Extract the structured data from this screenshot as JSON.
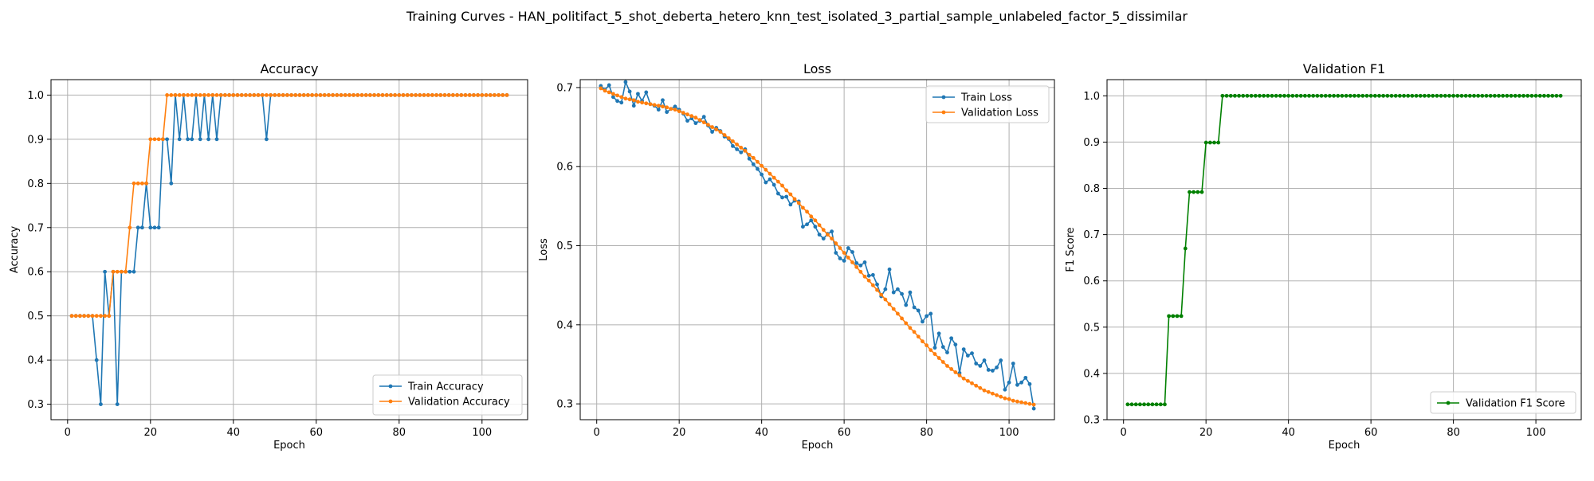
{
  "figure": {
    "suptitle": "Training Curves - HAN_politifact_5_shot_deberta_hetero_knn_test_isolated_3_partial_sample_unlabeled_factor_5_dissimilar"
  },
  "colors": {
    "blue": "#1f77b4",
    "orange": "#ff7f0e",
    "green": "#008000",
    "grid": "#b0b0b0"
  },
  "chart_data": [
    {
      "type": "line",
      "title": "Accuracy",
      "xlabel": "Epoch",
      "ylabel": "Accuracy",
      "xlim": [
        -4,
        111
      ],
      "ylim": [
        0.265,
        1.035
      ],
      "xticks": [
        0,
        20,
        40,
        60,
        80,
        100
      ],
      "yticks": [
        0.3,
        0.4,
        0.5,
        0.6,
        0.7,
        0.8,
        0.9,
        1.0
      ],
      "ytick_labels": [
        "0.3",
        "0.4",
        "0.5",
        "0.6",
        "0.7",
        "0.8",
        "0.9",
        "1.0"
      ],
      "grid": true,
      "legend_position": "lower-right",
      "series": [
        {
          "name": "Train Accuracy",
          "color": "#1f77b4",
          "x_start": 1,
          "values": [
            0.5,
            0.5,
            0.5,
            0.5,
            0.5,
            0.5,
            0.4,
            0.3,
            0.6,
            0.5,
            0.6,
            0.3,
            0.6,
            0.6,
            0.6,
            0.6,
            0.7,
            0.7,
            0.8,
            0.7,
            0.7,
            0.7,
            0.9,
            0.9,
            0.8,
            1.0,
            0.9,
            1.0,
            0.9,
            0.9,
            1.0,
            0.9,
            1.0,
            0.9,
            1.0,
            0.9,
            1.0,
            1.0,
            1.0,
            1.0,
            1.0,
            1.0,
            1.0,
            1.0,
            1.0,
            1.0,
            1.0,
            0.9,
            1.0,
            1.0,
            1.0,
            1.0,
            1.0,
            1.0,
            1.0,
            1.0,
            1.0,
            1.0,
            1.0,
            1.0,
            1.0,
            1.0,
            1.0,
            1.0,
            1.0,
            1.0,
            1.0,
            1.0,
            1.0,
            1.0,
            1.0,
            1.0,
            1.0,
            1.0,
            1.0,
            1.0,
            1.0,
            1.0,
            1.0,
            1.0,
            1.0,
            1.0,
            1.0,
            1.0,
            1.0,
            1.0,
            1.0,
            1.0,
            1.0,
            1.0,
            1.0,
            1.0,
            1.0,
            1.0,
            1.0,
            1.0,
            1.0,
            1.0,
            1.0,
            1.0,
            1.0,
            1.0,
            1.0,
            1.0,
            1.0,
            1.0
          ]
        },
        {
          "name": "Validation Accuracy",
          "color": "#ff7f0e",
          "x_start": 1,
          "values": [
            0.5,
            0.5,
            0.5,
            0.5,
            0.5,
            0.5,
            0.5,
            0.5,
            0.5,
            0.5,
            0.6,
            0.6,
            0.6,
            0.6,
            0.7,
            0.8,
            0.8,
            0.8,
            0.8,
            0.9,
            0.9,
            0.9,
            0.9,
            1.0,
            1.0,
            1.0,
            1.0,
            1.0,
            1.0,
            1.0,
            1.0,
            1.0,
            1.0,
            1.0,
            1.0,
            1.0,
            1.0,
            1.0,
            1.0,
            1.0,
            1.0,
            1.0,
            1.0,
            1.0,
            1.0,
            1.0,
            1.0,
            1.0,
            1.0,
            1.0,
            1.0,
            1.0,
            1.0,
            1.0,
            1.0,
            1.0,
            1.0,
            1.0,
            1.0,
            1.0,
            1.0,
            1.0,
            1.0,
            1.0,
            1.0,
            1.0,
            1.0,
            1.0,
            1.0,
            1.0,
            1.0,
            1.0,
            1.0,
            1.0,
            1.0,
            1.0,
            1.0,
            1.0,
            1.0,
            1.0,
            1.0,
            1.0,
            1.0,
            1.0,
            1.0,
            1.0,
            1.0,
            1.0,
            1.0,
            1.0,
            1.0,
            1.0,
            1.0,
            1.0,
            1.0,
            1.0,
            1.0,
            1.0,
            1.0,
            1.0,
            1.0,
            1.0,
            1.0,
            1.0,
            1.0,
            1.0
          ]
        }
      ]
    },
    {
      "type": "line",
      "title": "Loss",
      "xlabel": "Epoch",
      "ylabel": "Loss",
      "xlim": [
        -4,
        111
      ],
      "ylim": [
        0.28,
        0.71
      ],
      "xticks": [
        0,
        20,
        40,
        60,
        80,
        100
      ],
      "yticks": [
        0.3,
        0.4,
        0.5,
        0.6,
        0.7
      ],
      "ytick_labels": [
        "0.3",
        "0.4",
        "0.5",
        "0.6",
        "0.7"
      ],
      "grid": true,
      "legend_position": "upper-right",
      "series": [
        {
          "name": "Train Loss",
          "color": "#1f77b4",
          "x_start": 1,
          "values": [
            0.702,
            0.697,
            0.703,
            0.688,
            0.683,
            0.681,
            0.707,
            0.695,
            0.677,
            0.692,
            0.683,
            0.694,
            0.679,
            0.677,
            0.672,
            0.684,
            0.669,
            0.673,
            0.676,
            0.672,
            0.667,
            0.658,
            0.661,
            0.655,
            0.658,
            0.663,
            0.652,
            0.644,
            0.649,
            0.645,
            0.638,
            0.635,
            0.626,
            0.622,
            0.618,
            0.622,
            0.61,
            0.603,
            0.597,
            0.59,
            0.58,
            0.584,
            0.577,
            0.566,
            0.561,
            0.562,
            0.552,
            0.557,
            0.556,
            0.524,
            0.527,
            0.532,
            0.524,
            0.514,
            0.509,
            0.515,
            0.518,
            0.491,
            0.484,
            0.481,
            0.497,
            0.492,
            0.478,
            0.475,
            0.479,
            0.462,
            0.463,
            0.451,
            0.436,
            0.445,
            0.47,
            0.441,
            0.445,
            0.439,
            0.425,
            0.441,
            0.422,
            0.418,
            0.404,
            0.411,
            0.414,
            0.371,
            0.389,
            0.372,
            0.365,
            0.383,
            0.375,
            0.339,
            0.369,
            0.361,
            0.364,
            0.351,
            0.348,
            0.355,
            0.343,
            0.342,
            0.346,
            0.355,
            0.318,
            0.327,
            0.351,
            0.324,
            0.327,
            0.333,
            0.325,
            0.294
          ]
        },
        {
          "name": "Validation Loss",
          "color": "#ff7f0e",
          "x_start": 1,
          "values": [
            0.699,
            0.696,
            0.694,
            0.692,
            0.69,
            0.688,
            0.686,
            0.685,
            0.684,
            0.682,
            0.681,
            0.68,
            0.679,
            0.678,
            0.677,
            0.676,
            0.675,
            0.673,
            0.672,
            0.67,
            0.668,
            0.666,
            0.664,
            0.662,
            0.659,
            0.656,
            0.653,
            0.65,
            0.647,
            0.644,
            0.64,
            0.636,
            0.632,
            0.628,
            0.624,
            0.62,
            0.615,
            0.611,
            0.606,
            0.601,
            0.596,
            0.591,
            0.586,
            0.581,
            0.576,
            0.57,
            0.565,
            0.559,
            0.554,
            0.548,
            0.543,
            0.537,
            0.532,
            0.526,
            0.52,
            0.514,
            0.509,
            0.503,
            0.497,
            0.491,
            0.485,
            0.479,
            0.473,
            0.467,
            0.461,
            0.456,
            0.45,
            0.444,
            0.438,
            0.432,
            0.426,
            0.42,
            0.414,
            0.408,
            0.402,
            0.396,
            0.391,
            0.385,
            0.379,
            0.374,
            0.368,
            0.363,
            0.358,
            0.353,
            0.348,
            0.344,
            0.34,
            0.336,
            0.332,
            0.329,
            0.326,
            0.323,
            0.32,
            0.317,
            0.315,
            0.313,
            0.311,
            0.309,
            0.307,
            0.306,
            0.304,
            0.303,
            0.302,
            0.301,
            0.3,
            0.299
          ]
        }
      ]
    },
    {
      "type": "line",
      "title": "Validation F1",
      "xlabel": "Epoch",
      "ylabel": "F1 Score",
      "xlim": [
        -4,
        111
      ],
      "ylim": [
        0.3,
        1.035
      ],
      "xticks": [
        0,
        20,
        40,
        60,
        80,
        100
      ],
      "yticks": [
        0.3,
        0.4,
        0.5,
        0.6,
        0.7,
        0.8,
        0.9,
        1.0
      ],
      "ytick_labels": [
        "0.3",
        "0.4",
        "0.5",
        "0.6",
        "0.7",
        "0.8",
        "0.9",
        "1.0"
      ],
      "grid": true,
      "legend_position": "lower-right",
      "series": [
        {
          "name": "Validation F1 Score",
          "color": "#008000",
          "x_start": 1,
          "values": [
            0.333,
            0.333,
            0.333,
            0.333,
            0.333,
            0.333,
            0.333,
            0.333,
            0.333,
            0.333,
            0.524,
            0.524,
            0.524,
            0.524,
            0.67,
            0.792,
            0.792,
            0.792,
            0.792,
            0.899,
            0.899,
            0.899,
            0.899,
            1.0,
            1.0,
            1.0,
            1.0,
            1.0,
            1.0,
            1.0,
            1.0,
            1.0,
            1.0,
            1.0,
            1.0,
            1.0,
            1.0,
            1.0,
            1.0,
            1.0,
            1.0,
            1.0,
            1.0,
            1.0,
            1.0,
            1.0,
            1.0,
            1.0,
            1.0,
            1.0,
            1.0,
            1.0,
            1.0,
            1.0,
            1.0,
            1.0,
            1.0,
            1.0,
            1.0,
            1.0,
            1.0,
            1.0,
            1.0,
            1.0,
            1.0,
            1.0,
            1.0,
            1.0,
            1.0,
            1.0,
            1.0,
            1.0,
            1.0,
            1.0,
            1.0,
            1.0,
            1.0,
            1.0,
            1.0,
            1.0,
            1.0,
            1.0,
            1.0,
            1.0,
            1.0,
            1.0,
            1.0,
            1.0,
            1.0,
            1.0,
            1.0,
            1.0,
            1.0,
            1.0,
            1.0,
            1.0,
            1.0,
            1.0,
            1.0,
            1.0,
            1.0,
            1.0,
            1.0,
            1.0,
            1.0,
            1.0
          ]
        }
      ]
    }
  ]
}
